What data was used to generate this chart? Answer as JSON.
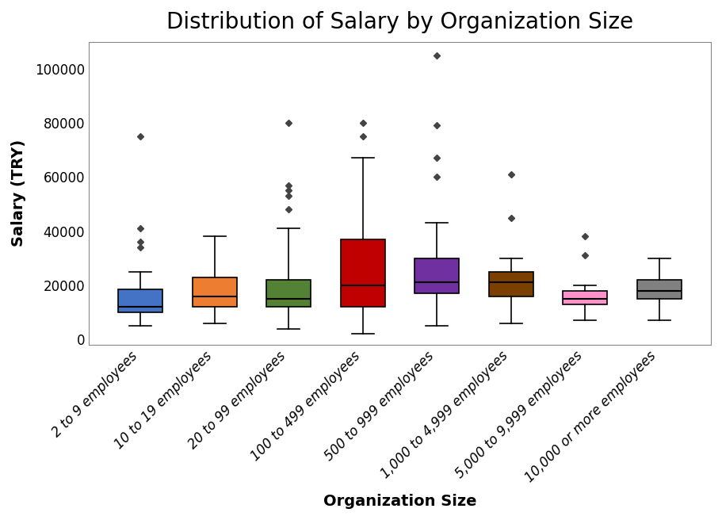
{
  "title": "Distribution of Salary by Organization Size",
  "xlabel": "Organization Size",
  "ylabel": "Salary (TRY)",
  "categories": [
    "2 to 9 employees",
    "10 to 19 employees",
    "20 to 99 employees",
    "100 to 499 employees",
    "500 to 999 employees",
    "1,000 to 4,999 employees",
    "5,000 to 9,999 employees",
    "10,000 or more employees"
  ],
  "colors": [
    "#4472C4",
    "#ED7D31",
    "#548235",
    "#C00000",
    "#7030A0",
    "#7B3F00",
    "#FF92CA",
    "#808080"
  ],
  "box_stats": [
    {
      "whislo": 5000,
      "q1": 10000,
      "med": 12000,
      "q3": 18500,
      "whishi": 25000,
      "fliers": [
        34000,
        36000,
        41000,
        75000
      ]
    },
    {
      "whislo": 6000,
      "q1": 12000,
      "med": 16000,
      "q3": 23000,
      "whishi": 38000,
      "fliers": []
    },
    {
      "whislo": 4000,
      "q1": 12000,
      "med": 15000,
      "q3": 22000,
      "whishi": 41000,
      "fliers": [
        48000,
        53000,
        55000,
        57000,
        80000
      ]
    },
    {
      "whislo": 2000,
      "q1": 12000,
      "med": 20000,
      "q3": 37000,
      "whishi": 67000,
      "fliers": [
        75000,
        80000
      ]
    },
    {
      "whislo": 5000,
      "q1": 17000,
      "med": 21000,
      "q3": 30000,
      "whishi": 43000,
      "fliers": [
        60000,
        67000,
        79000,
        105000
      ]
    },
    {
      "whislo": 6000,
      "q1": 16000,
      "med": 21000,
      "q3": 25000,
      "whishi": 30000,
      "fliers": [
        45000,
        61000
      ]
    },
    {
      "whislo": 7000,
      "q1": 13000,
      "med": 15000,
      "q3": 18000,
      "whishi": 20000,
      "fliers": [
        31000,
        38000
      ]
    },
    {
      "whislo": 7000,
      "q1": 15000,
      "med": 18000,
      "q3": 22000,
      "whishi": 30000,
      "fliers": []
    }
  ],
  "ylim": [
    -2000,
    110000
  ],
  "figsize": [
    9.11,
    6.56
  ],
  "dpi": 100,
  "title_fontsize": 20,
  "label_fontsize": 14,
  "tick_fontsize": 12
}
